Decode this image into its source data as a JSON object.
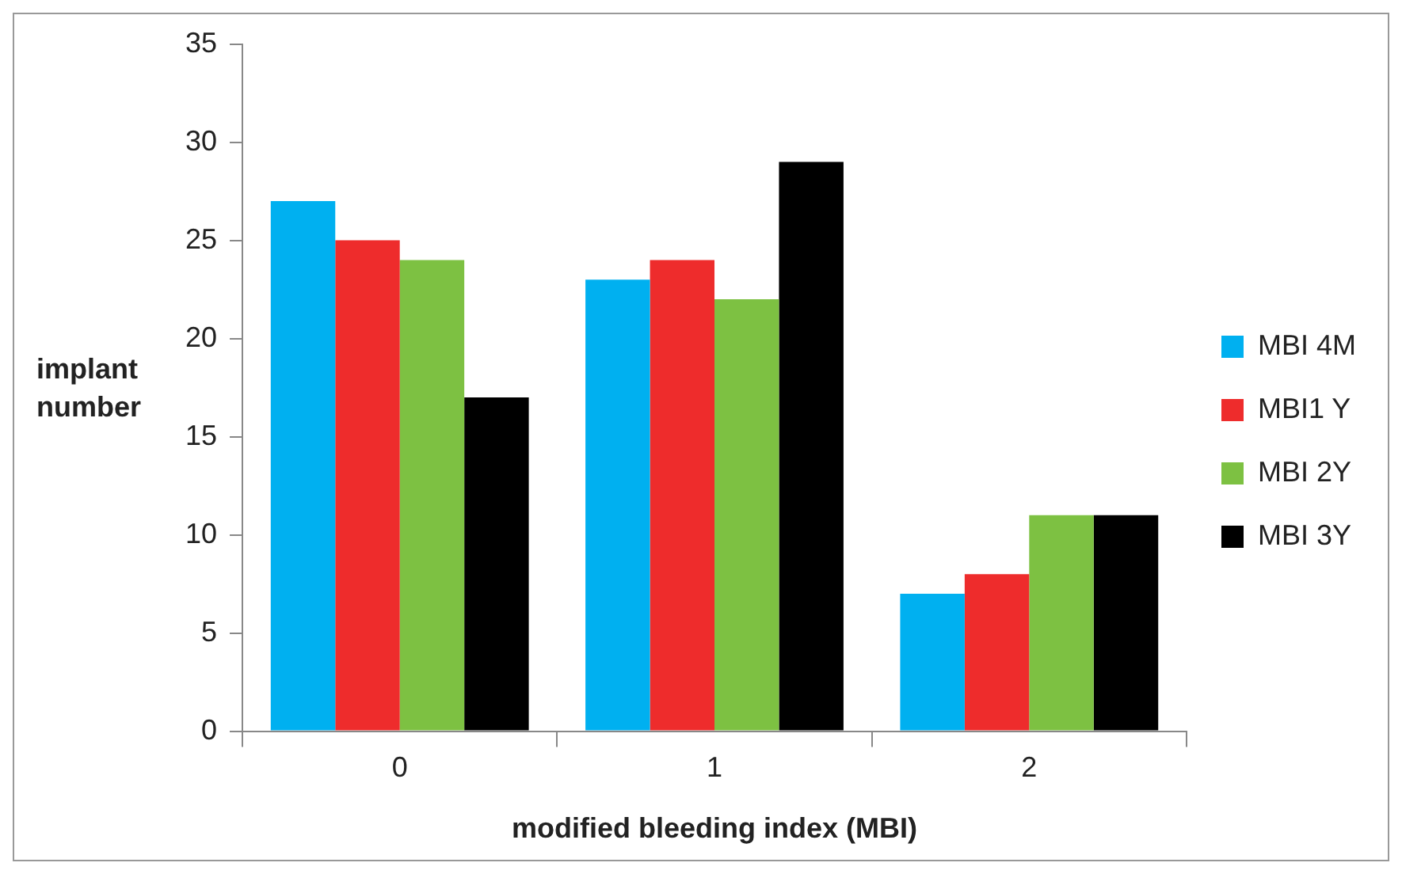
{
  "chart_data": {
    "type": "bar",
    "xlabel": "modified bleeding index (MBI)",
    "ylabel": "implant number",
    "categories": [
      "0",
      "1",
      "2"
    ],
    "series": [
      {
        "name": "MBI 4M",
        "color": "#00b0f0",
        "values": [
          27,
          23,
          7
        ]
      },
      {
        "name": "MBI1 Y",
        "color": "#ee2c2c",
        "values": [
          25,
          24,
          8
        ]
      },
      {
        "name": "MBI 2Y",
        "color": "#7dc142",
        "values": [
          24,
          22,
          11
        ]
      },
      {
        "name": "MBI 3Y",
        "color": "#000000",
        "values": [
          17,
          29,
          11
        ]
      }
    ],
    "ylim": [
      0,
      35
    ],
    "yticks": [
      0,
      5,
      10,
      15,
      20,
      25,
      30,
      35
    ],
    "grid": false,
    "legend": "right"
  }
}
